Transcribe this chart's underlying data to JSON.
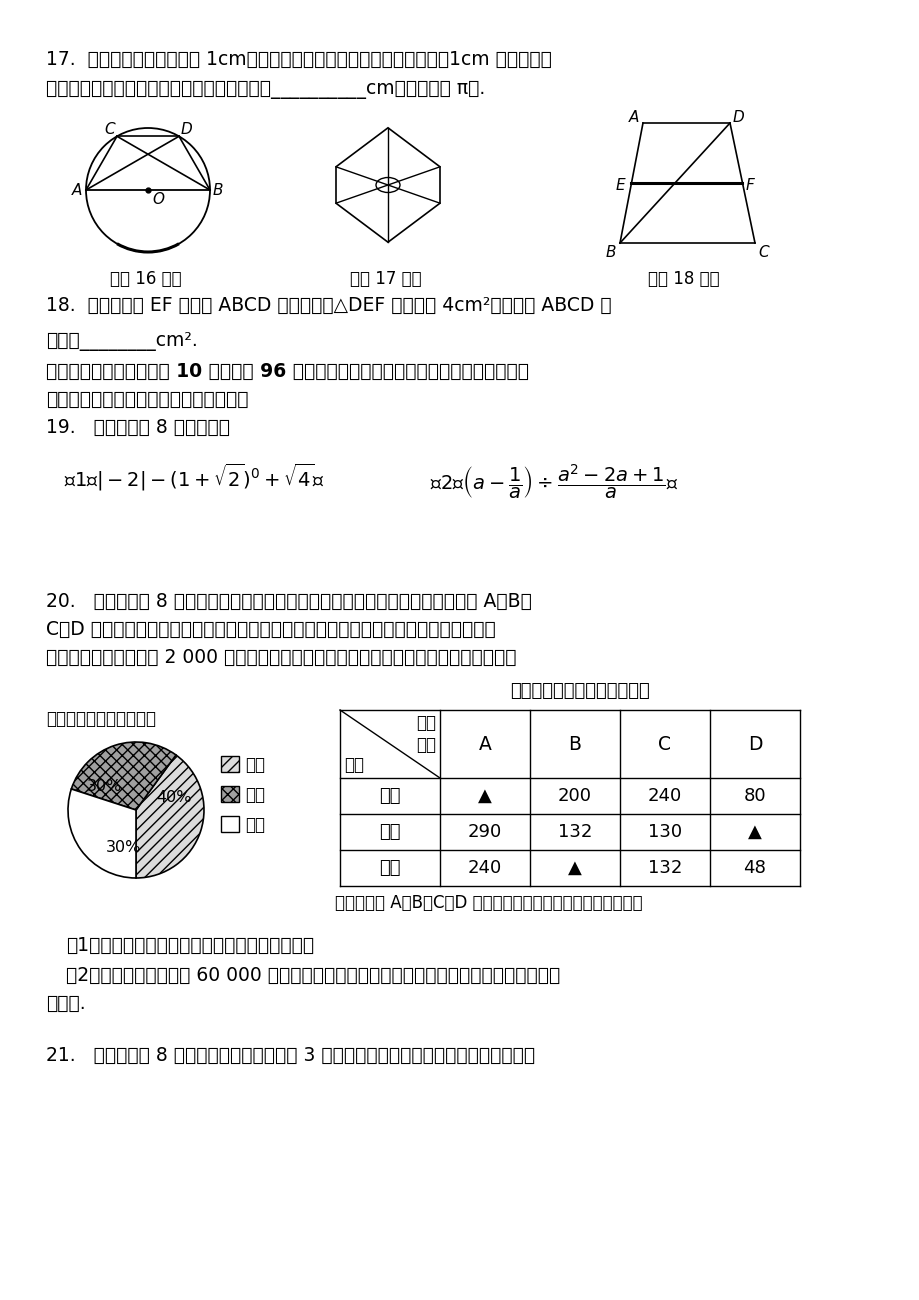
{
  "bg_color": "#ffffff",
  "q17_text1": "17.  已知正六边形的边长为 1cm，分别以它的三个不相邻的顶点为圆心，1cm 长为半径画",
  "q17_text2": "弧（如图），则所得到的三条弧的长度之和为__________cm（结果保留 π）.",
  "fig16_label": "（第 16 题）",
  "fig17_label": "（第 17 题）",
  "fig18_label": "（第 18 题）",
  "q18_text1": "18.  如图，已知 EF 是梯形 ABCD 的中位线，△DEF 的面积为 4cm²，则梯形 ABCD 的",
  "q18_text2": "面积为________cm².",
  "q3_header": "三、解答题（本大题共有 10 小题，共 96 分．请在答题卡指定区域内作答，解答时应写出",
  "q3_header2": "必要的文字说明、证明过程或演算步骤）",
  "q19_text": "19.   （本题满分 8 分）计算：",
  "q20_text1": "20.   （本题满分 8 分）某市对九年级学生进行了一次学业水平测试，成绩评定分 A、B、",
  "q20_text2": "C、D 四个等第．为了解这次数学测试成绩情况，相关部门从该市的农村、县镇、城市三",
  "q20_text3": "类群体的学生中共抽取 2 000 名学生的数学成绩进行统计分析，相应数据的统计图表如下",
  "table_title": "各类学生成绩人数比例统计表",
  "pie_title": "各类学生人数比例统计图",
  "pie_sizes": [
    0.4,
    0.3,
    0.3
  ],
  "pie_colors": [
    "#dcdcdc",
    "#a0a0a0",
    "#ffffff"
  ],
  "pie_texts": [
    "40%",
    "30%",
    "30%"
  ],
  "legend_labels": [
    "农村",
    "县镇",
    "城市"
  ],
  "legend_colors": [
    "#dcdcdc",
    "#a0a0a0",
    "#ffffff"
  ],
  "table_rows": [
    [
      "农村",
      "▲",
      "200",
      "240",
      "80"
    ],
    [
      "县镇",
      "290",
      "132",
      "130",
      "▲"
    ],
    [
      "城市",
      "240",
      "▲",
      "132",
      "48"
    ]
  ],
  "table_note": "（注：等第 A、B、C、D 分别代表优秀、良好、合格、不合格）",
  "q20_q1": "（1）请将上面表格中缺少的三个数据补充完整；",
  "q20_q2": "（2）若该市九年级共有 60 000 名学生参加测试，试估计该市学生成绩合格以上（含合格）",
  "q20_q2b": "的人数.",
  "q21_text": "21.   （本题满分 8 分）一家医院某天出生了 3 个婴儿，假设生男生女的机会相同，那么这"
}
